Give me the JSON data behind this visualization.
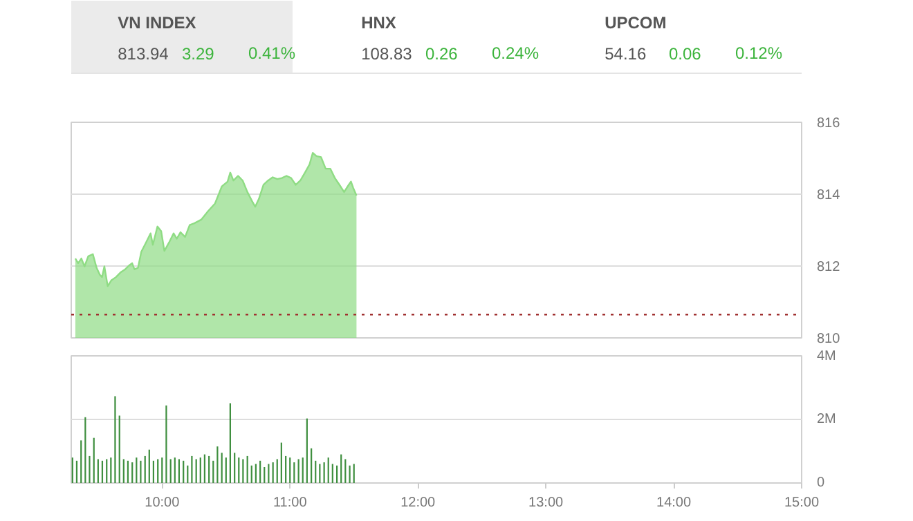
{
  "chart_data": [
    {
      "type": "other",
      "annotations": [
        "VN INDEX",
        "813.94",
        "3.29",
        "0.41%",
        "HNX",
        "108.83",
        "0.26",
        "0.24%",
        "UPCOM",
        "54.16",
        "0.06",
        "0.12%"
      ]
    },
    {
      "type": "area",
      "color": "#8fdc84",
      "xlim": [
        9.29,
        15
      ],
      "ylim": [
        810,
        816
      ],
      "yticks": [
        810,
        812,
        814,
        816
      ],
      "grid": "y",
      "tick_labels": "y",
      "ref_lines": [
        {
          "axis": "y",
          "value": 810.65,
          "color": "#a03030",
          "line_style": "dotted"
        }
      ],
      "x": [
        9.322,
        9.344,
        9.369,
        9.394,
        9.423,
        9.459,
        9.488,
        9.513,
        9.531,
        9.549,
        9.575,
        9.603,
        9.639,
        9.675,
        9.712,
        9.74,
        9.766,
        9.784,
        9.812,
        9.838,
        9.874,
        9.91,
        9.928,
        9.964,
        9.993,
        10.018,
        10.054,
        10.09,
        10.115,
        10.144,
        10.18,
        10.216,
        10.252,
        10.306,
        10.36,
        10.414,
        10.468,
        10.512,
        10.533,
        10.558,
        10.594,
        10.63,
        10.667,
        10.703,
        10.728,
        10.757,
        10.793,
        10.829,
        10.865,
        10.901,
        10.937,
        10.973,
        11.009,
        11.045,
        11.081,
        11.117,
        11.153,
        11.178,
        11.207,
        11.243,
        11.279,
        11.315,
        11.351,
        11.387,
        11.423,
        11.459,
        11.477,
        11.495,
        11.52
      ],
      "values": [
        812.21,
        812.08,
        812.21,
        811.99,
        812.27,
        812.33,
        811.95,
        811.76,
        811.69,
        811.99,
        811.44,
        811.6,
        811.69,
        811.82,
        811.91,
        812.01,
        812.08,
        811.91,
        811.95,
        812.4,
        812.65,
        812.91,
        812.59,
        813.1,
        812.97,
        812.42,
        812.65,
        812.91,
        812.76,
        812.94,
        812.81,
        813.14,
        813.19,
        813.29,
        813.53,
        813.74,
        814.22,
        814.35,
        814.6,
        814.38,
        814.51,
        814.38,
        814.06,
        813.81,
        813.65,
        813.87,
        814.26,
        814.38,
        814.47,
        814.42,
        814.45,
        814.51,
        814.45,
        814.26,
        814.38,
        814.6,
        814.83,
        815.15,
        815.06,
        815.03,
        814.71,
        814.71,
        814.45,
        814.26,
        814.06,
        814.26,
        814.35,
        814.17,
        813.96
      ]
    },
    {
      "type": "bar",
      "color": "#3f8f3f",
      "xlim": [
        9.29,
        15
      ],
      "ylim": [
        0,
        4
      ],
      "grid": "y",
      "xticks": [
        {
          "value": 10,
          "label": "10:00"
        },
        {
          "value": 11,
          "label": "11:00"
        },
        {
          "value": 12,
          "label": "12:00"
        },
        {
          "value": 13,
          "label": "13:00"
        },
        {
          "value": 14,
          "label": "14:00"
        },
        {
          "value": 15,
          "label": "15:00"
        }
      ],
      "yticks": [
        0,
        {
          "value": 2,
          "label": "2M"
        },
        {
          "value": 4,
          "label": "4M"
        }
      ],
      "x": [
        9.3,
        9.333,
        9.367,
        9.4,
        9.433,
        9.467,
        9.5,
        9.533,
        9.567,
        9.6,
        9.633,
        9.667,
        9.7,
        9.733,
        9.767,
        9.8,
        9.833,
        9.867,
        9.9,
        9.933,
        9.967,
        10,
        10.033,
        10.067,
        10.1,
        10.133,
        10.167,
        10.2,
        10.233,
        10.267,
        10.3,
        10.333,
        10.367,
        10.4,
        10.433,
        10.467,
        10.5,
        10.533,
        10.567,
        10.6,
        10.633,
        10.667,
        10.7,
        10.733,
        10.767,
        10.8,
        10.833,
        10.867,
        10.9,
        10.933,
        10.967,
        11,
        11.033,
        11.067,
        11.1,
        11.133,
        11.167,
        11.2,
        11.233,
        11.267,
        11.3,
        11.333,
        11.367,
        11.4,
        11.433,
        11.467,
        11.5
      ],
      "values": [
        0.8,
        0.7,
        1.34,
        2.07,
        0.85,
        1.42,
        0.75,
        0.7,
        0.75,
        0.8,
        2.73,
        2.12,
        0.75,
        0.7,
        0.65,
        0.8,
        0.7,
        0.85,
        1.05,
        0.7,
        0.75,
        0.8,
        2.44,
        0.75,
        0.8,
        0.75,
        0.7,
        0.55,
        0.85,
        0.75,
        0.8,
        0.9,
        0.85,
        0.7,
        1.15,
        0.95,
        0.8,
        2.51,
        0.95,
        0.8,
        0.75,
        0.85,
        0.55,
        0.6,
        0.7,
        0.5,
        0.6,
        0.65,
        0.75,
        1.27,
        0.85,
        0.8,
        0.65,
        0.75,
        0.8,
        2.03,
        1.09,
        0.7,
        0.6,
        0.65,
        0.8,
        0.6,
        0.55,
        0.9,
        0.75,
        0.55,
        0.6
      ]
    }
  ]
}
